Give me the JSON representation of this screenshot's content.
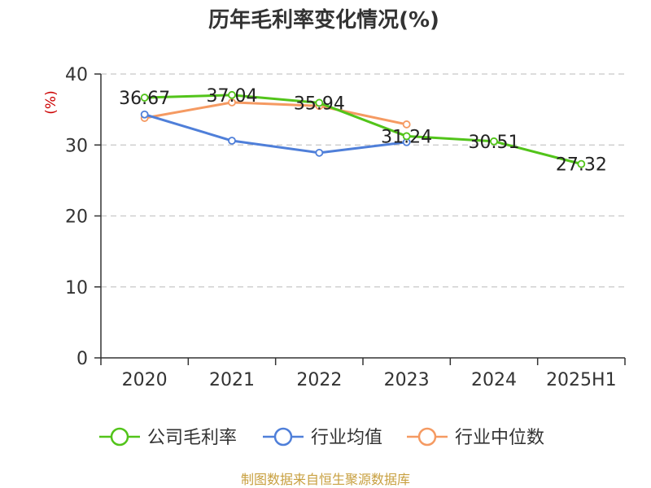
{
  "chart_data": {
    "type": "line",
    "title": "历年毛利率变化情况(%)",
    "ylabel": "(%)",
    "categories": [
      "2020",
      "2021",
      "2022",
      "2023",
      "2024",
      "2025H1"
    ],
    "ylim": [
      0,
      40
    ],
    "yticks": [
      "0",
      "10",
      "20",
      "30",
      "40"
    ],
    "grid": true,
    "legend_position": "bottom",
    "series": [
      {
        "name": "公司毛利率",
        "color": "#52c41a",
        "values": [
          36.67,
          37.04,
          35.94,
          31.24,
          30.51,
          27.32
        ],
        "labels": [
          "36.67",
          "37.04",
          "35.94",
          "31.24",
          "30.51",
          "27.32"
        ]
      },
      {
        "name": "行业均值",
        "color": "#4f7fd9",
        "values": [
          34.3,
          30.6,
          28.9,
          30.4,
          null,
          null
        ]
      },
      {
        "name": "行业中位数",
        "color": "#f59a62",
        "values": [
          33.8,
          36.0,
          35.5,
          32.9,
          null,
          null
        ]
      }
    ]
  },
  "source": {
    "text": "制图数据来自恒生聚源数据库",
    "color": "#c8a040"
  },
  "colors": {
    "axis": "#333333",
    "grid": "#c8c8c8",
    "unit": "#cc0000"
  }
}
